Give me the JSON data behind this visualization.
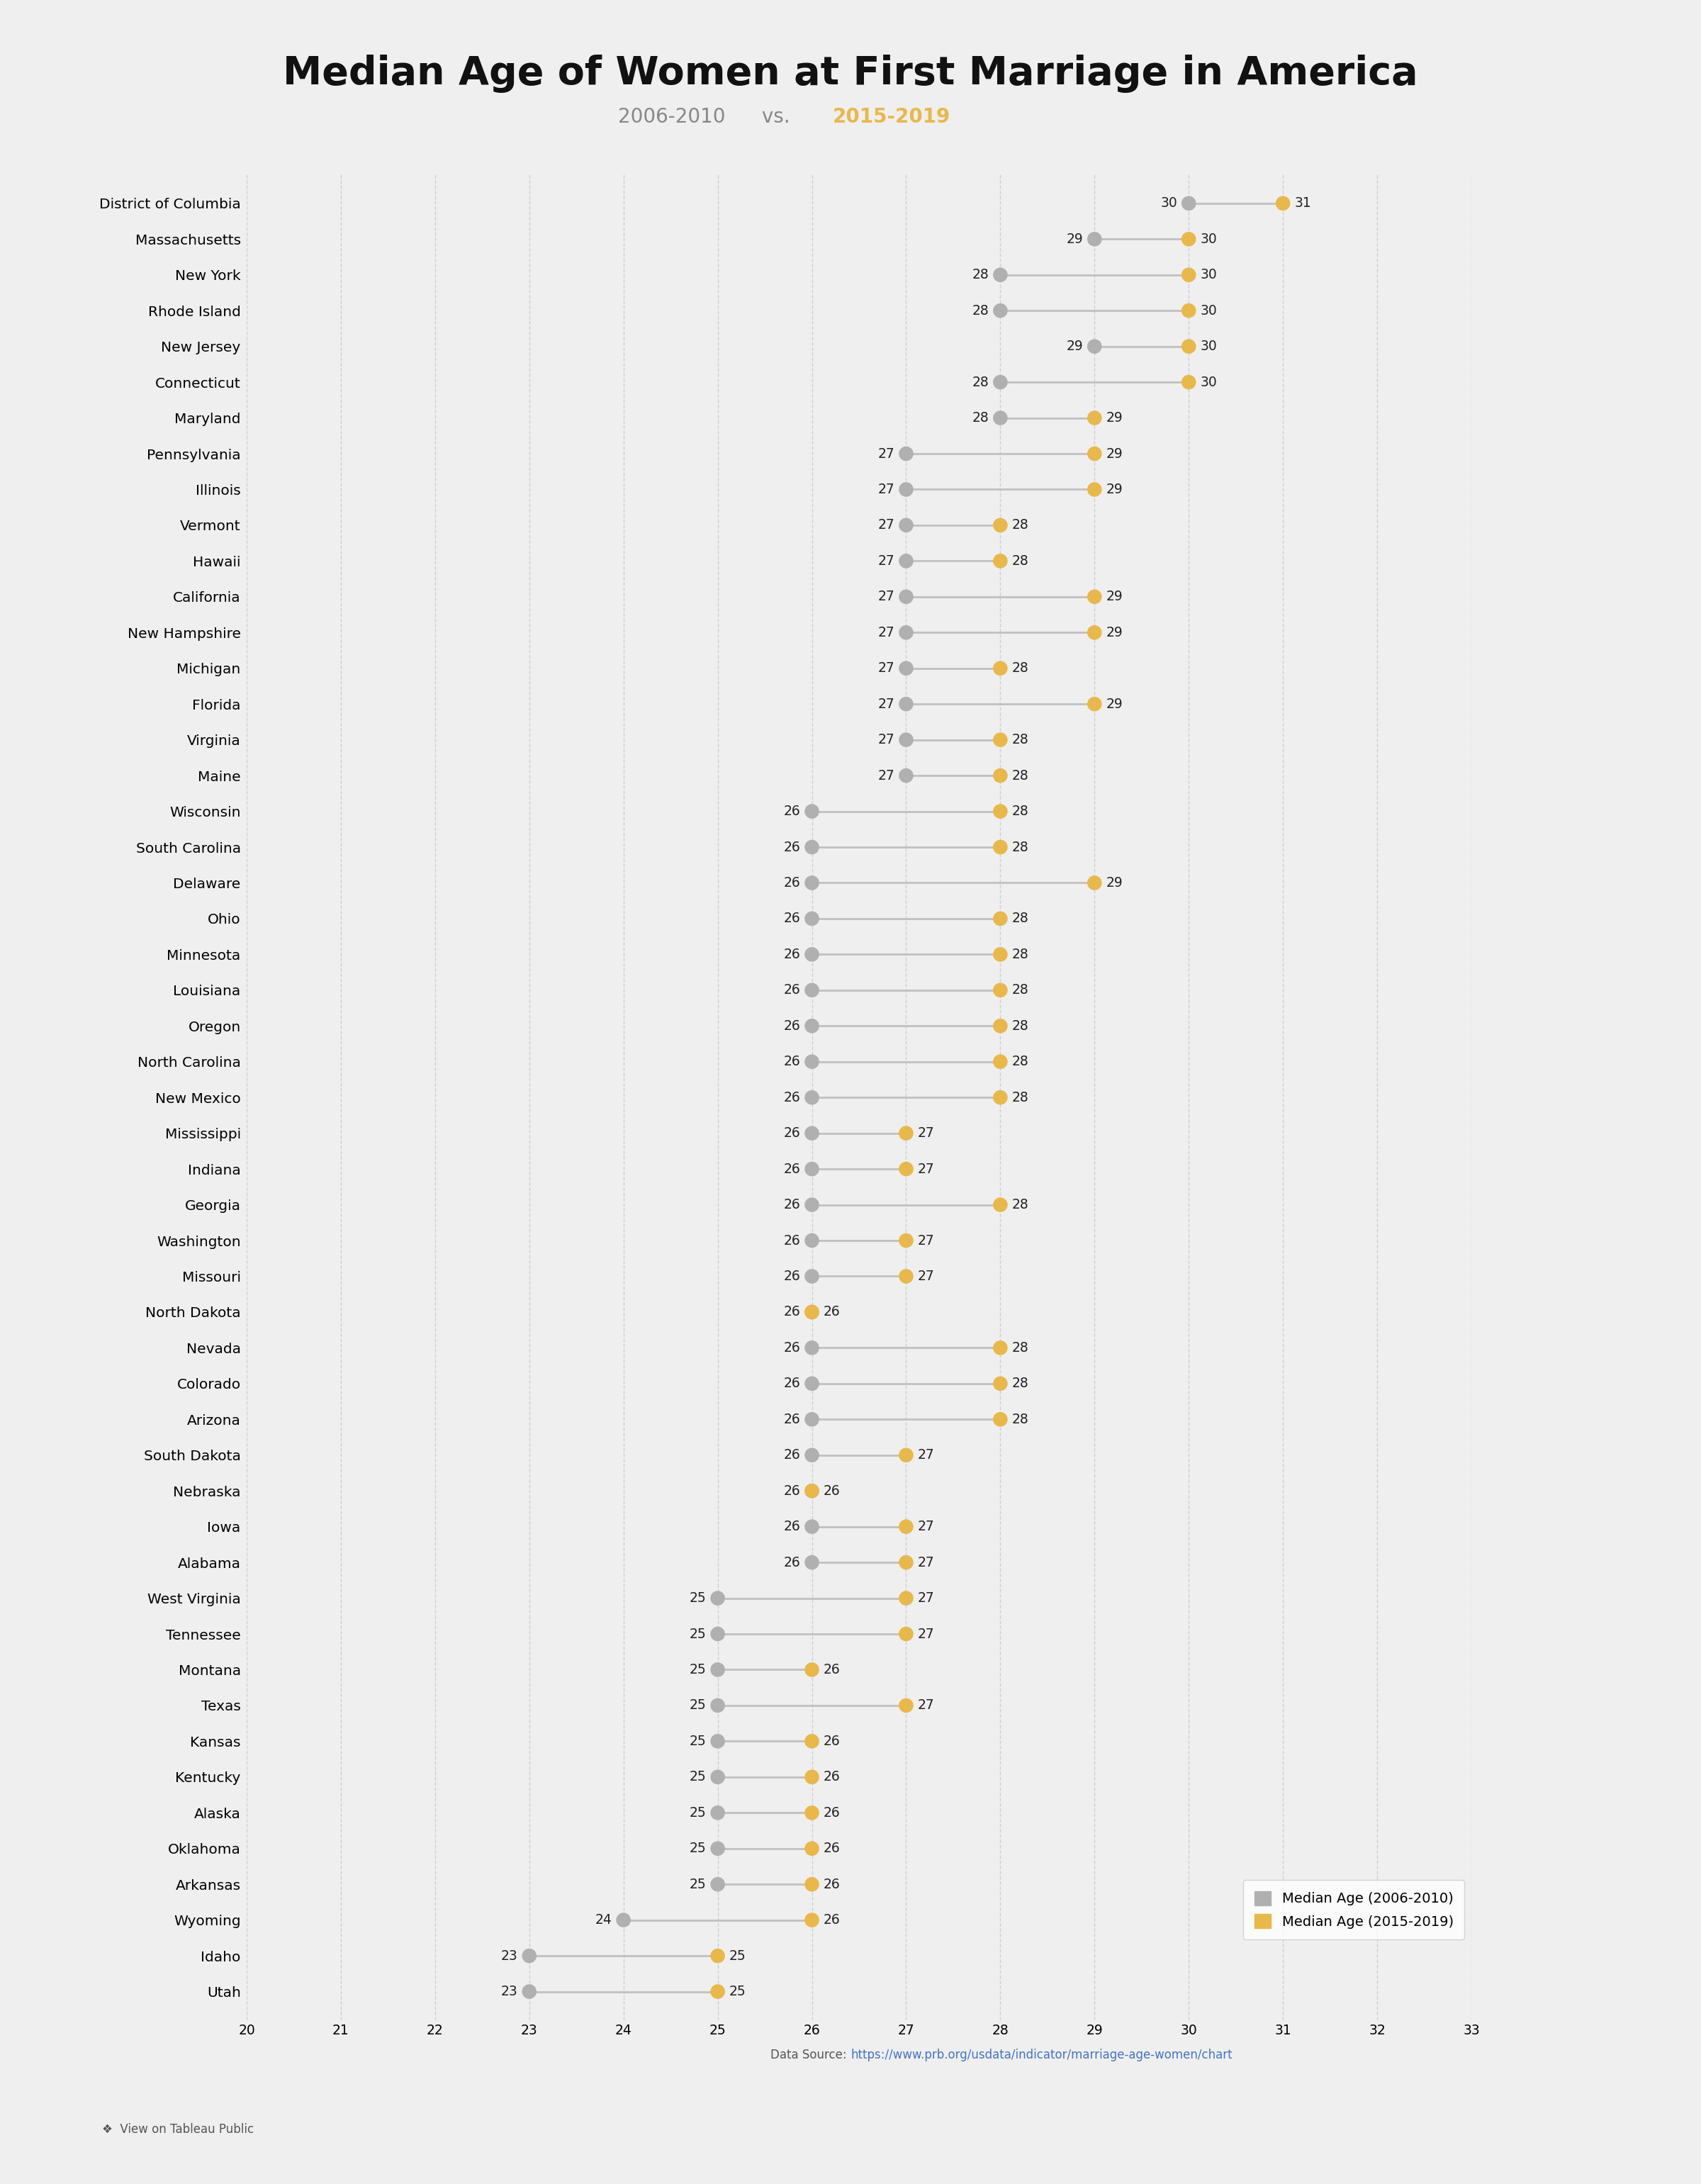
{
  "title": "Median Age of Women at First Marriage in America",
  "subtitle_part1": "2006-2010",
  "subtitle_vs": " vs. ",
  "subtitle_part2": "2015-2019",
  "states": [
    "District of Columbia",
    "Massachusetts",
    "New York",
    "Rhode Island",
    "New Jersey",
    "Connecticut",
    "Maryland",
    "Pennsylvania",
    "Illinois",
    "Vermont",
    "Hawaii",
    "California",
    "New Hampshire",
    "Michigan",
    "Florida",
    "Virginia",
    "Maine",
    "Wisconsin",
    "South Carolina",
    "Delaware",
    "Ohio",
    "Minnesota",
    "Louisiana",
    "Oregon",
    "North Carolina",
    "New Mexico",
    "Mississippi",
    "Indiana",
    "Georgia",
    "Washington",
    "Missouri",
    "North Dakota",
    "Nevada",
    "Colorado",
    "Arizona",
    "South Dakota",
    "Nebraska",
    "Iowa",
    "Alabama",
    "West Virginia",
    "Tennessee",
    "Montana",
    "Texas",
    "Kansas",
    "Kentucky",
    "Alaska",
    "Oklahoma",
    "Arkansas",
    "Wyoming",
    "Idaho",
    "Utah"
  ],
  "age_2006_2010": [
    30,
    29,
    28,
    28,
    29,
    28,
    28,
    27,
    27,
    27,
    27,
    27,
    27,
    27,
    27,
    27,
    27,
    26,
    26,
    26,
    26,
    26,
    26,
    26,
    26,
    26,
    26,
    26,
    26,
    26,
    26,
    26,
    26,
    26,
    26,
    26,
    26,
    26,
    26,
    25,
    25,
    25,
    25,
    25,
    25,
    25,
    25,
    25,
    24,
    23,
    23
  ],
  "age_2015_2019": [
    31,
    30,
    30,
    30,
    30,
    30,
    29,
    29,
    29,
    28,
    28,
    29,
    29,
    28,
    29,
    28,
    28,
    28,
    28,
    29,
    28,
    28,
    28,
    28,
    28,
    28,
    27,
    27,
    28,
    27,
    27,
    26,
    28,
    28,
    28,
    27,
    26,
    27,
    27,
    27,
    27,
    26,
    27,
    26,
    26,
    26,
    26,
    26,
    26,
    25,
    25
  ],
  "color_2006_2010": "#b0b0b0",
  "color_2015_2019": "#E8B84B",
  "bg_color": "#efefef",
  "line_color": "#c0c0c0",
  "xlim": [
    20,
    33
  ],
  "xticks": [
    20,
    21,
    22,
    23,
    24,
    25,
    26,
    27,
    28,
    29,
    30,
    31,
    32,
    33
  ],
  "grid_color": "#d0d0d0",
  "legend_label_2006": "Median Age (2006-2010)",
  "legend_label_2019": "Median Age (2015-2019)",
  "data_source_label": "Data Source: ",
  "data_source_url": "https://www.prb.org/usdata/indicator/marriage-age-women/chart",
  "footer_text": "❖  View on Tableau Public"
}
